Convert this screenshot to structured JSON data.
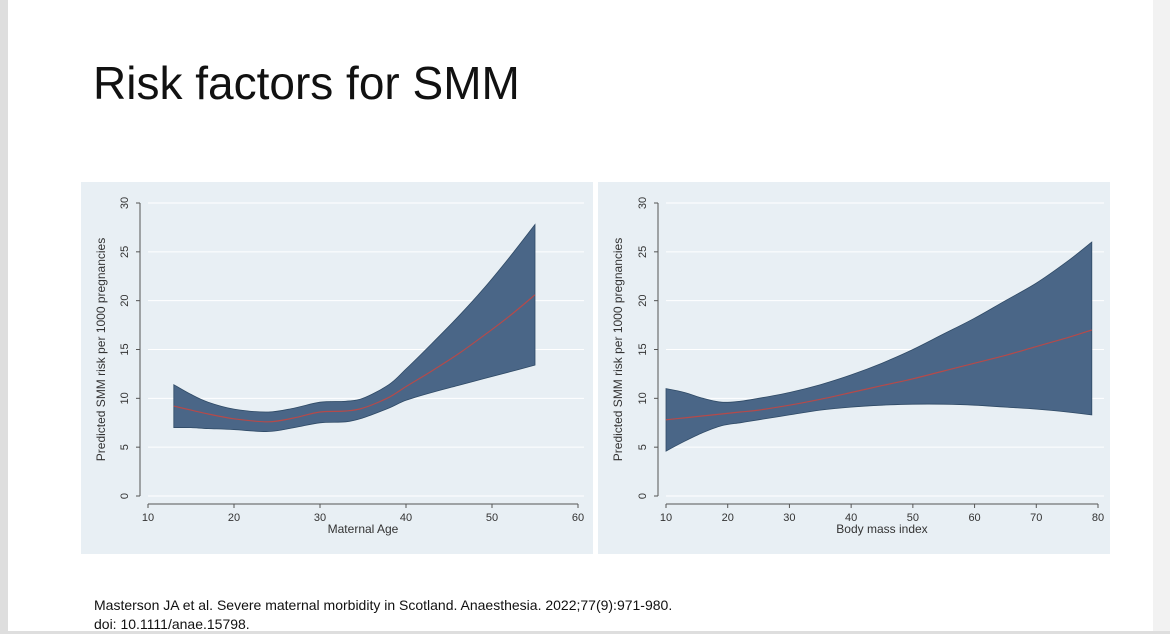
{
  "slide": {
    "title": "Risk factors for SMM",
    "citation_line1": "Masterson JA et al. Severe maternal morbidity in Scotland. Anaesthesia. 2022;77(9):971-980.",
    "citation_line2": "doi: 10.1111/anae.15798."
  },
  "colors": {
    "panel_background": "#e8eff4",
    "confidence_band": "#4a6687",
    "estimate_line": "#b54a4a",
    "gridline": "#ffffff"
  },
  "chart_data": [
    {
      "type": "line",
      "title": "",
      "xlabel": "Maternal Age",
      "ylabel": "Predicted SMM risk per 1000 pregnancies",
      "xlim": [
        10,
        60
      ],
      "ylim": [
        0,
        30
      ],
      "xticks": [
        10,
        20,
        30,
        40,
        50,
        60
      ],
      "yticks": [
        0,
        5,
        10,
        15,
        20,
        25,
        30
      ],
      "grid": true,
      "x": [
        13,
        15,
        17,
        20,
        24,
        27,
        30,
        33,
        35,
        38,
        40,
        43,
        46,
        49,
        52,
        55
      ],
      "series": [
        {
          "role": "estimate",
          "values": [
            9.2,
            8.8,
            8.4,
            7.9,
            7.6,
            8.0,
            8.6,
            8.7,
            9.0,
            10.1,
            11.2,
            12.8,
            14.5,
            16.4,
            18.4,
            20.6
          ]
        },
        {
          "role": "upper",
          "values": [
            11.4,
            10.4,
            9.6,
            8.9,
            8.6,
            9.0,
            9.6,
            9.7,
            10.0,
            11.4,
            13.0,
            15.6,
            18.3,
            21.2,
            24.4,
            27.8
          ]
        },
        {
          "role": "lower",
          "values": [
            7.0,
            7.0,
            6.9,
            6.8,
            6.6,
            7.0,
            7.5,
            7.6,
            8.0,
            9.0,
            9.8,
            10.6,
            11.3,
            12.0,
            12.7,
            13.4
          ]
        }
      ]
    },
    {
      "type": "line",
      "title": "",
      "xlabel": "Body mass index",
      "ylabel": "Predicted SMM risk per 1000 pregnancies",
      "xlim": [
        10,
        80
      ],
      "ylim": [
        0,
        30
      ],
      "xticks": [
        10,
        20,
        30,
        40,
        50,
        60,
        70,
        80
      ],
      "yticks": [
        0,
        5,
        10,
        15,
        20,
        25,
        30
      ],
      "grid": true,
      "x": [
        10,
        13,
        16,
        19,
        22,
        25,
        30,
        35,
        40,
        45,
        50,
        55,
        60,
        65,
        70,
        75,
        79
      ],
      "series": [
        {
          "role": "estimate",
          "values": [
            7.8,
            8.0,
            8.2,
            8.4,
            8.6,
            8.8,
            9.3,
            9.9,
            10.6,
            11.3,
            12.0,
            12.8,
            13.6,
            14.4,
            15.3,
            16.2,
            17.0
          ]
        },
        {
          "role": "upper",
          "values": [
            11.0,
            10.6,
            10.0,
            9.6,
            9.7,
            10.0,
            10.6,
            11.4,
            12.4,
            13.6,
            15.0,
            16.6,
            18.2,
            20.0,
            21.8,
            24.0,
            26.0
          ]
        },
        {
          "role": "lower",
          "values": [
            4.6,
            5.6,
            6.5,
            7.2,
            7.5,
            7.8,
            8.3,
            8.8,
            9.1,
            9.3,
            9.4,
            9.4,
            9.3,
            9.1,
            8.9,
            8.6,
            8.3
          ]
        }
      ]
    }
  ]
}
